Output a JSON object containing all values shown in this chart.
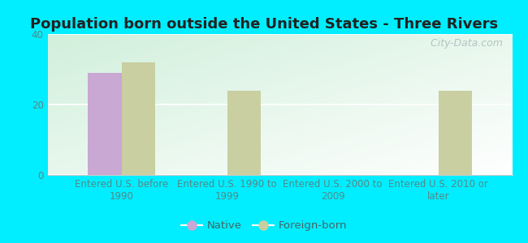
{
  "title": "Population born outside the United States - Three Rivers",
  "categories": [
    "Entered U.S. before\n1990",
    "Entered U.S. 1990 to\n1999",
    "Entered U.S. 2000 to\n2009",
    "Entered U.S. 2010 or\nlater"
  ],
  "native_values": [
    29.0,
    0,
    0,
    0
  ],
  "foreign_values": [
    32.0,
    24.0,
    0,
    24.0
  ],
  "native_color": "#c9a8d4",
  "foreign_color": "#c9cfa0",
  "background_outer": "#00eeff",
  "background_inner_tl": "#d0ecd8",
  "background_inner_br": "#f5fff8",
  "ylim": [
    0,
    40
  ],
  "yticks": [
    0,
    20,
    40
  ],
  "bar_width": 0.32,
  "watermark": "  City-Data.com",
  "legend_native": "Native",
  "legend_foreign": "Foreign-born",
  "title_fontsize": 13,
  "tick_fontsize": 8.5,
  "legend_fontsize": 9.5,
  "watermark_fontsize": 9
}
